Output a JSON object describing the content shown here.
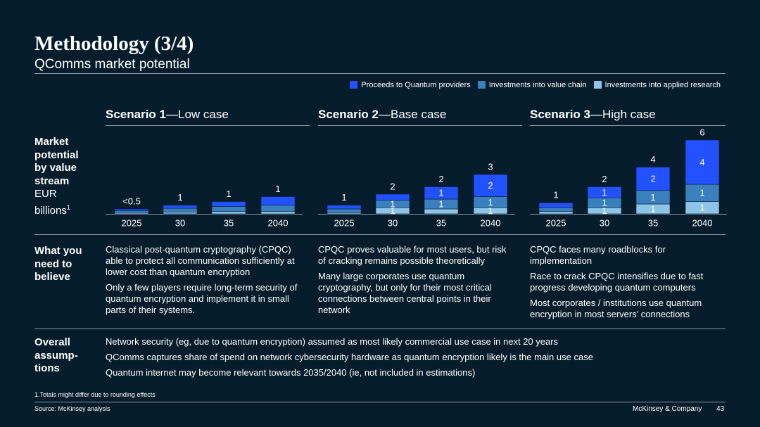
{
  "header": {
    "title": "Methodology (3/4)",
    "subtitle": "QComms market potential"
  },
  "chart_data": [
    {
      "type": "bar",
      "stacked": true,
      "title_bold": "Scenario 1",
      "title_rest": "—Low case",
      "categories": [
        "2025",
        "30",
        "35",
        "2040"
      ],
      "series": [
        {
          "name": "Proceeds to Quantum providers",
          "color": "#2251ff",
          "values": [
            0.15,
            0.25,
            0.4,
            0.7
          ],
          "value_labels": [
            null,
            null,
            null,
            null
          ]
        },
        {
          "name": "Investments into value chain",
          "color": "#3a80bf",
          "values": [
            0.15,
            0.3,
            0.4,
            0.5
          ],
          "value_labels": [
            null,
            null,
            null,
            null
          ]
        },
        {
          "name": "Investments into applied research",
          "color": "#8ec4e8",
          "values": [
            0.1,
            0.15,
            0.2,
            0.2
          ],
          "value_labels": [
            null,
            null,
            null,
            null
          ]
        }
      ],
      "total_labels": [
        "<0.5",
        "1",
        "1",
        "1"
      ]
    },
    {
      "type": "bar",
      "stacked": true,
      "title_bold": "Scenario 2",
      "title_rest": "—Base case",
      "categories": [
        "2025",
        "30",
        "35",
        "2040"
      ],
      "series": [
        {
          "name": "Proceeds to Quantum providers",
          "color": "#2251ff",
          "values": [
            0.3,
            0.5,
            1.0,
            1.8
          ],
          "value_labels": [
            null,
            null,
            "1",
            "2"
          ]
        },
        {
          "name": "Investments into value chain",
          "color": "#3a80bf",
          "values": [
            0.3,
            0.6,
            0.8,
            0.9
          ],
          "value_labels": [
            null,
            "1",
            "1",
            "1"
          ]
        },
        {
          "name": "Investments into applied research",
          "color": "#8ec4e8",
          "values": [
            0.1,
            0.5,
            0.4,
            0.5
          ],
          "value_labels": [
            null,
            "1",
            null,
            "1"
          ]
        }
      ],
      "total_labels": [
        "1",
        "2",
        "2",
        "3"
      ]
    },
    {
      "type": "bar",
      "stacked": true,
      "title_bold": "Scenario 3",
      "title_rest": "—High case",
      "categories": [
        "2025",
        "30",
        "35",
        "2040"
      ],
      "series": [
        {
          "name": "Proceeds to Quantum providers",
          "color": "#2251ff",
          "values": [
            0.4,
            0.9,
            1.9,
            3.6
          ],
          "value_labels": [
            null,
            "1",
            "2",
            "4"
          ]
        },
        {
          "name": "Investments into value chain",
          "color": "#3a80bf",
          "values": [
            0.3,
            0.8,
            1.1,
            1.4
          ],
          "value_labels": [
            null,
            "1",
            "1",
            "1"
          ]
        },
        {
          "name": "Investments into applied research",
          "color": "#8ec4e8",
          "values": [
            0.2,
            0.5,
            0.8,
            1.0
          ],
          "value_labels": [
            null,
            "1",
            "1",
            "1"
          ]
        }
      ],
      "total_labels": [
        "1",
        "2",
        "4",
        "6"
      ]
    }
  ],
  "rows": {
    "market_label": "Market potential by value stream",
    "unit_label": "EUR billions",
    "unit_note": "1",
    "believe_label": "What you need to believe",
    "overall_label": "Overall assump-tions"
  },
  "beliefs": [
    [
      "Classical post-quantum cryptography (CPQC) able to protect all communication sufficiently at lower cost than quantum encryption",
      "Only a few players require long-term security of quantum encryption and implement it in small parts of their systems."
    ],
    [
      "CPQC proves valuable for most users, but risk of cracking remains possible theoretically",
      "Many large corporates use quantum cryptography, but only for their most critical connections between central points in their network"
    ],
    [
      "CPQC faces many roadblocks for implementation",
      "Race to crack CPQC intensifies due to fast progress developing quantum computers",
      "Most corporates / institutions use quantum encryption in most servers’ connections"
    ]
  ],
  "assumptions": [
    "Network security (eg, due to quantum encryption) assumed as most likely commercial use case in next 20 years",
    "QComms captures share of spend on network cybersecurity hardware as quantum encryption likely is the main use case",
    "Quantum internet may become relevant towards 2035/2040 (ie, not included in estimations)"
  ],
  "footnote": "1.Totals might differ due to rounding effects",
  "source": "Source: McKinsey analysis",
  "brand": "McKinsey & Company",
  "page": "43"
}
